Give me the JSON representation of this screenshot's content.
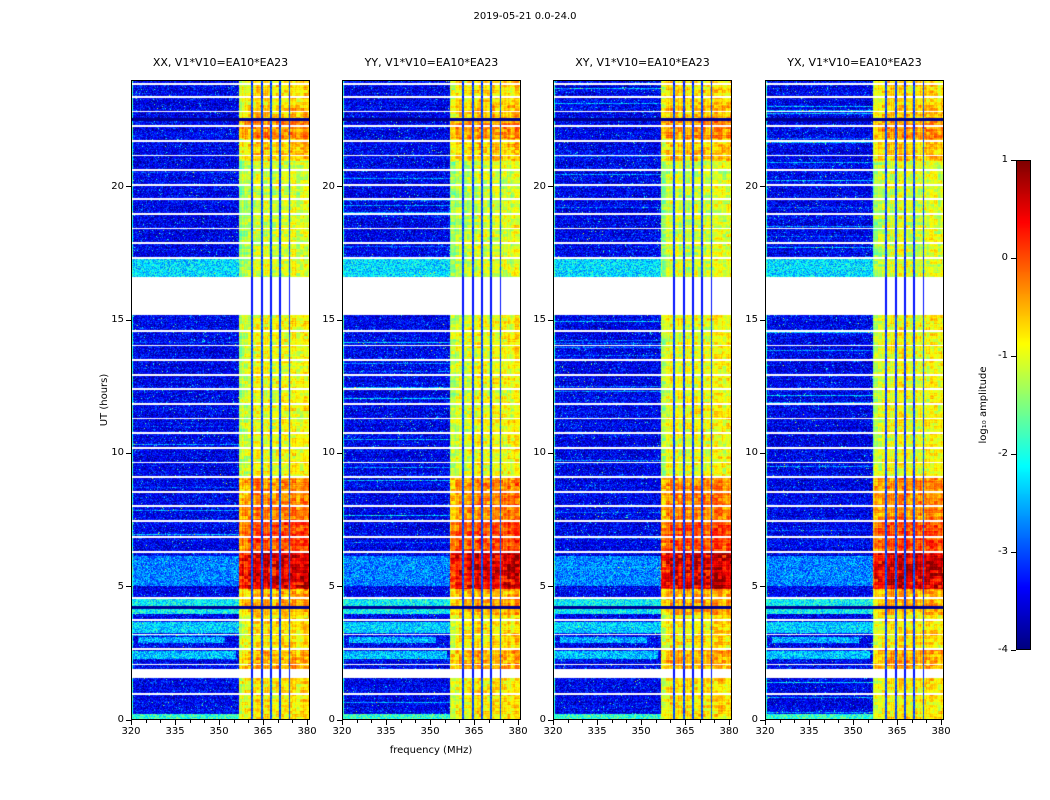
{
  "chart_data": {
    "type": "heatmap",
    "title": "2019-05-21 0.0-24.0",
    "xlabel": "frequency (MHz)",
    "ylabel": "UT (hours)",
    "xlim": [
      320,
      381
    ],
    "ylim": [
      0,
      24
    ],
    "xticks": [
      320,
      335,
      350,
      365,
      380
    ],
    "yticks": [
      0,
      5,
      10,
      15,
      20
    ],
    "panels": [
      {
        "pol": "XX",
        "title": "XX, V1*V10=EA10*EA23"
      },
      {
        "pol": "YY",
        "title": "YY, V1*V10=EA10*EA23"
      },
      {
        "pol": "XY",
        "title": "XY, V1*V10=EA10*EA23"
      },
      {
        "pol": "YX",
        "title": "YX, V1*V10=EA10*EA23"
      }
    ],
    "colorbar": {
      "label": "log₁₀ amplitude",
      "ticks": [
        1,
        0,
        -1,
        -2,
        -3,
        -4
      ],
      "tick_labels": [
        "1",
        "0",
        "-1",
        "-2",
        "-3",
        "-4"
      ],
      "vmin": -4,
      "vmax": 1,
      "colormap": "jet"
    },
    "spectrogram_model": {
      "background_level": -3.45,
      "noise_sigma": 0.3,
      "speckle_prob": 0.015,
      "left_edge_level": -1.9,
      "seed": 20190521,
      "band": {
        "freq_start": 357,
        "freq_end": 381,
        "notch_freqs": [
          361.5,
          364.7,
          367.9,
          371.1,
          374.3
        ],
        "notch_halfwidth": 0.32,
        "block_noise": 0.35,
        "time_profile": [
          [
            0.0,
            1.55,
            -0.85
          ],
          [
            1.88,
            2.65,
            -0.55
          ],
          [
            2.65,
            3.9,
            -0.85
          ],
          [
            3.9,
            4.9,
            -0.55
          ],
          [
            4.9,
            6.25,
            0.45
          ],
          [
            6.25,
            7.45,
            -0.05
          ],
          [
            7.45,
            9.05,
            -0.35
          ],
          [
            9.05,
            15.18,
            -1.0
          ],
          [
            16.62,
            21.0,
            -1.15
          ],
          [
            21.0,
            21.8,
            -0.7
          ],
          [
            21.8,
            22.5,
            -0.4
          ],
          [
            22.5,
            23.1,
            -0.65
          ],
          [
            23.1,
            24.0,
            -0.8
          ]
        ]
      },
      "patches": [
        {
          "t": [
            2.25,
            2.55
          ],
          "f": [
            320,
            356
          ],
          "level": -2.45
        },
        {
          "t": [
            2.85,
            3.1
          ],
          "f": [
            322,
            352
          ],
          "level": -2.55
        },
        {
          "t": [
            3.25,
            3.65
          ],
          "f": [
            320,
            357
          ],
          "level": -2.35
        },
        {
          "t": [
            3.95,
            4.5
          ],
          "f": [
            320,
            358
          ],
          "level": -2.15
        },
        {
          "t": [
            5.0,
            6.15
          ],
          "f": [
            320,
            357
          ],
          "level": -2.75
        },
        {
          "t": [
            16.62,
            17.3
          ],
          "f": [
            320,
            381
          ],
          "level": -2.3
        },
        {
          "t": [
            0.0,
            0.2
          ],
          "f": [
            320,
            381
          ],
          "level": -1.9
        }
      ],
      "white_gaps": [
        [
          1.55,
          1.88
        ],
        [
          15.18,
          16.62
        ]
      ],
      "white_lines": [
        0.95,
        2.05,
        2.62,
        3.18,
        3.72,
        4.55,
        6.27,
        6.85,
        7.45,
        8.0,
        8.55,
        9.1,
        9.65,
        10.2,
        10.75,
        11.3,
        11.85,
        12.4,
        12.95,
        13.5,
        14.05,
        14.6,
        17.35,
        17.9,
        18.45,
        19.0,
        19.55,
        20.1,
        20.65,
        21.2,
        21.75,
        22.3,
        22.85,
        23.4,
        23.9
      ],
      "black_lines": [
        4.2,
        22.55
      ]
    }
  }
}
